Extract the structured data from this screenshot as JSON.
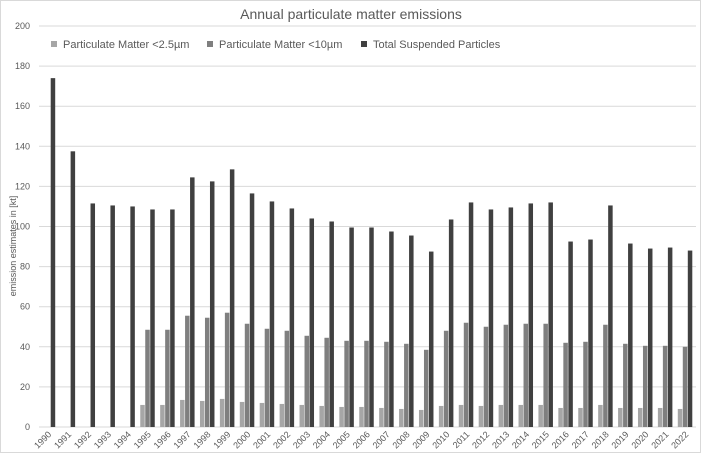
{
  "chart_data": {
    "type": "bar",
    "title": "Annual particulate matter emissions",
    "xlabel": "",
    "ylabel": "emission estimates in [kt]",
    "ylim": [
      0,
      200
    ],
    "yticks": [
      0,
      20,
      40,
      60,
      80,
      100,
      120,
      140,
      160,
      180,
      200
    ],
    "grid": true,
    "legend_position": "top",
    "categories": [
      "1990",
      "1991",
      "1992",
      "1993",
      "1994",
      "1995",
      "1996",
      "1997",
      "1998",
      "1999",
      "2000",
      "2001",
      "2002",
      "2003",
      "2004",
      "2005",
      "2006",
      "2007",
      "2008",
      "2009",
      "2010",
      "2011",
      "2012",
      "2013",
      "2014",
      "2015",
      "2016",
      "2017",
      "2018",
      "2019",
      "2020",
      "2021",
      "2022"
    ],
    "series": [
      {
        "name": "Particulate Matter <2.5µm",
        "color": "#a6a6a6",
        "values": [
          null,
          null,
          null,
          null,
          null,
          11,
          11,
          13.5,
          13,
          14,
          12.5,
          12,
          11.5,
          11,
          10.5,
          10,
          10,
          9.5,
          9,
          8.5,
          10.5,
          11,
          10.5,
          11,
          11,
          11,
          9.5,
          9.5,
          11,
          9.5,
          9.5,
          9.5,
          9
        ]
      },
      {
        "name": "Particulate Matter <10µm",
        "color": "#7f7f7f",
        "values": [
          null,
          null,
          null,
          null,
          null,
          48.5,
          48.5,
          55.5,
          54.5,
          57,
          51.5,
          49,
          48,
          45.5,
          44.5,
          43,
          43,
          42.5,
          41.5,
          38.5,
          48,
          52,
          50,
          51,
          51.5,
          51.5,
          42,
          42.5,
          51,
          41.5,
          40.5,
          40.5,
          40
        ]
      },
      {
        "name": "Total Suspended Particles",
        "color": "#404040",
        "values": [
          174,
          137.5,
          111.5,
          110.5,
          110,
          108.5,
          108.5,
          124.5,
          122.5,
          128.5,
          116.5,
          112.5,
          109,
          104,
          102.5,
          99.5,
          99.5,
          97.5,
          95.5,
          87.5,
          103.5,
          112,
          108.5,
          109.5,
          111.5,
          112,
          92.5,
          93.5,
          110.5,
          91.5,
          89,
          89.5,
          88
        ]
      }
    ]
  }
}
